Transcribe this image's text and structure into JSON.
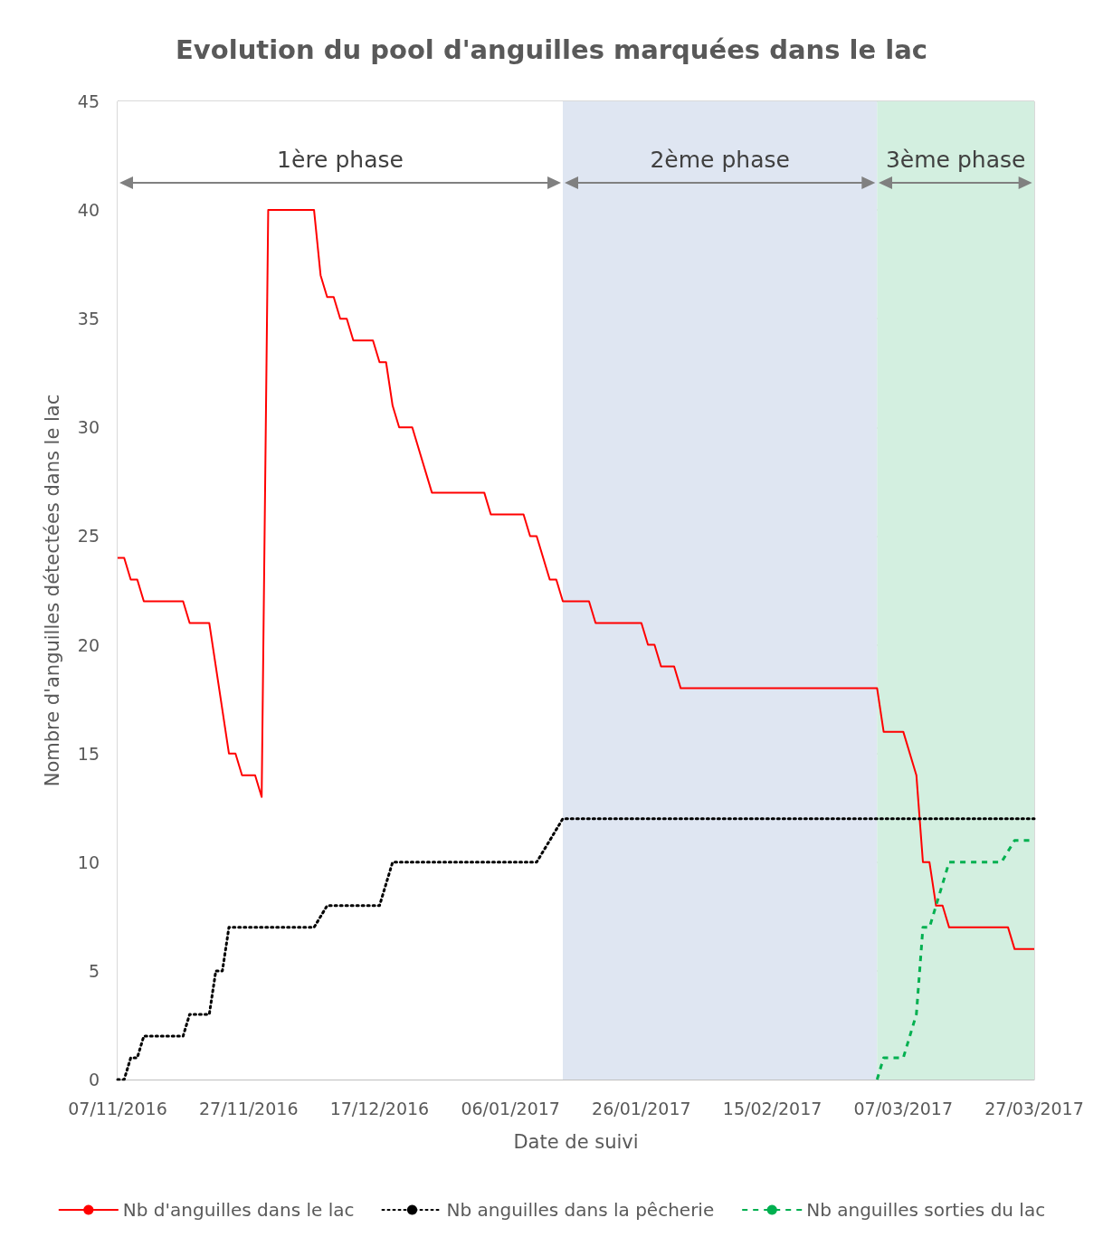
{
  "chart_data": {
    "type": "line",
    "title": "Evolution du pool d'anguilles marquées dans le lac",
    "xlabel": "Date de suivi",
    "ylabel": "Nombre d'anguilles détectées dans le lac",
    "xlim": [
      "2016-11-07",
      "2017-03-27"
    ],
    "xticks": [
      {
        "value": "2016-11-07",
        "label": "07/11/2016"
      },
      {
        "value": "2016-11-27",
        "label": "27/11/2016"
      },
      {
        "value": "2016-12-17",
        "label": "17/12/2016"
      },
      {
        "value": "2017-01-06",
        "label": "06/01/2017"
      },
      {
        "value": "2017-01-26",
        "label": "26/01/2017"
      },
      {
        "value": "2017-02-15",
        "label": "15/02/2017"
      },
      {
        "value": "2017-03-07",
        "label": "07/03/2017"
      },
      {
        "value": "2017-03-27",
        "label": "27/03/2017"
      }
    ],
    "ylim": [
      0,
      45
    ],
    "yticks": [
      0,
      5,
      10,
      15,
      20,
      25,
      30,
      35,
      40,
      45
    ],
    "grid": true,
    "legend": "bottom",
    "marker": "none",
    "bands": [
      {
        "axis": "x",
        "from": "2016-11-07",
        "to": "2017-01-14",
        "label": "1ère phase",
        "color": "#ffffff"
      },
      {
        "axis": "x",
        "from": "2017-01-14",
        "to": "2017-03-03",
        "label": "2ème phase",
        "color": "#dfe6f2"
      },
      {
        "axis": "x",
        "from": "2017-03-03",
        "to": "2017-03-27",
        "label": "3ème phase",
        "color": "#d3efe0"
      }
    ],
    "series": [
      {
        "name": "Nb d'anguilles dans le lac",
        "color": "#ff0000",
        "line_style": "solid",
        "x": [
          "2016-11-07",
          "2016-11-08",
          "2016-11-09",
          "2016-11-10",
          "2016-11-11",
          "2016-11-17",
          "2016-11-18",
          "2016-11-21",
          "2016-11-24",
          "2016-11-25",
          "2016-11-26",
          "2016-11-28",
          "2016-11-29",
          "2016-11-30",
          "2016-12-07",
          "2016-12-08",
          "2016-12-09",
          "2016-12-10",
          "2016-12-11",
          "2016-12-12",
          "2016-12-13",
          "2016-12-16",
          "2016-12-17",
          "2016-12-18",
          "2016-12-19",
          "2016-12-20",
          "2016-12-22",
          "2016-12-25",
          "2017-01-02",
          "2017-01-03",
          "2017-01-08",
          "2017-01-09",
          "2017-01-10",
          "2017-01-12",
          "2017-01-13",
          "2017-01-14",
          "2017-01-18",
          "2017-01-19",
          "2017-01-26",
          "2017-01-27",
          "2017-01-28",
          "2017-01-29",
          "2017-01-31",
          "2017-02-01",
          "2017-03-03",
          "2017-03-04",
          "2017-03-07",
          "2017-03-09",
          "2017-03-10",
          "2017-03-11",
          "2017-03-12",
          "2017-03-13",
          "2017-03-14",
          "2017-03-23",
          "2017-03-24",
          "2017-03-27"
        ],
        "values": [
          24,
          24,
          23,
          23,
          22,
          22,
          21,
          21,
          15,
          15,
          14,
          14,
          13,
          40,
          40,
          37,
          36,
          36,
          35,
          35,
          34,
          34,
          33,
          33,
          31,
          30,
          30,
          27,
          27,
          26,
          26,
          25,
          25,
          23,
          23,
          22,
          22,
          21,
          21,
          20,
          20,
          19,
          19,
          18,
          18,
          16,
          16,
          14,
          10,
          10,
          8,
          8,
          7,
          7,
          6,
          6
        ]
      },
      {
        "name": "Nb anguilles dans la pêcherie",
        "color": "#000000",
        "line_style": "dotted",
        "x": [
          "2016-11-07",
          "2016-11-08",
          "2016-11-09",
          "2016-11-10",
          "2016-11-11",
          "2016-11-17",
          "2016-11-18",
          "2016-11-21",
          "2016-11-22",
          "2016-11-23",
          "2016-11-24",
          "2016-12-07",
          "2016-12-09",
          "2016-12-17",
          "2016-12-19",
          "2017-01-10",
          "2017-01-12",
          "2017-01-14",
          "2017-03-27"
        ],
        "values": [
          0,
          0,
          1,
          1,
          2,
          2,
          3,
          3,
          5,
          5,
          7,
          7,
          8,
          8,
          10,
          10,
          11,
          12,
          12
        ]
      },
      {
        "name": "Nb anguilles sorties du lac",
        "color": "#00b050",
        "line_style": "dashed",
        "x": [
          "2017-03-03",
          "2017-03-04",
          "2017-03-07",
          "2017-03-09",
          "2017-03-10",
          "2017-03-11",
          "2017-03-14",
          "2017-03-22",
          "2017-03-24",
          "2017-03-27"
        ],
        "values": [
          0,
          1,
          1,
          3,
          7,
          7,
          10,
          10,
          11,
          11
        ]
      }
    ]
  }
}
